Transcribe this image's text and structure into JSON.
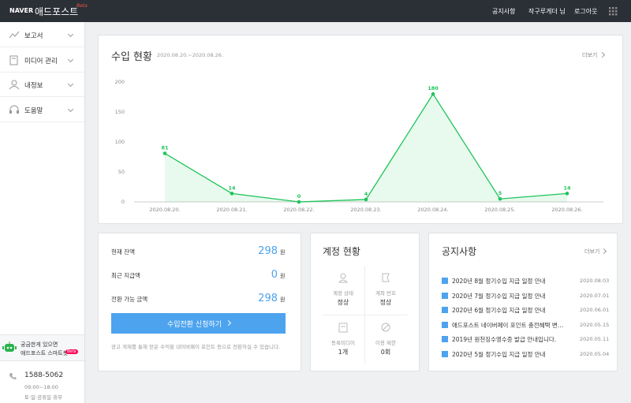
{
  "header": {
    "logo": "NAVER",
    "service": "애드포스트",
    "badge": "Beta",
    "links": [
      "공지사항",
      "작구루게더 님",
      "로그아웃"
    ]
  },
  "sidebar": {
    "menu": [
      "보고서",
      "미디어 관리",
      "내정보",
      "도움말"
    ],
    "bot": {
      "line1": "궁금한게 있으면",
      "line2": "애드포스트 스마트봇",
      "badge": "Beta"
    },
    "phone": "1588-5062",
    "hours": "09:00~18:00",
    "closed": "토·일·공휴일 휴무"
  },
  "revenue": {
    "title": "수입 현황",
    "period": "2020.08.20.~2020.08.26.",
    "more": "더보기",
    "chart": {
      "type": "line",
      "categories": [
        "2020.08.20.",
        "2020.08.21.",
        "2020.08.22.",
        "2020.08.23.",
        "2020.08.24.",
        "2020.08.25.",
        "2020.08.26."
      ],
      "values": [
        81,
        14,
        0,
        4,
        180,
        5,
        14
      ],
      "color": "#1fc45a",
      "ylim": [
        0,
        200
      ],
      "yticks": [
        0,
        50,
        100,
        150,
        200
      ],
      "grid": false
    }
  },
  "balance": {
    "rows": [
      {
        "label": "현재 잔액",
        "amount": 298,
        "unit": "원"
      },
      {
        "label": "최근 지급액",
        "amount": 0,
        "unit": "원"
      },
      {
        "label": "전환 가능 금액",
        "amount": 298,
        "unit": "원"
      }
    ],
    "button": "수입전환 신청하기",
    "note": "광고 게재를 통해 얻은 수익을 네이버페이 포인트 등으로 전환하실 수 있습니다."
  },
  "account": {
    "title": "계정 현황",
    "items": [
      {
        "label": "계정 상태",
        "value": "정상"
      },
      {
        "label": "계좌 번호",
        "value": "정상"
      },
      {
        "label": "등록미디어",
        "value": "1개"
      },
      {
        "label": "이용 제한",
        "value": "0회"
      }
    ]
  },
  "notices": {
    "title": "공지사항",
    "more": "더보기",
    "items": [
      {
        "text": "2020년 8월 정기수입 지급 일정 안내",
        "date": "2020.08.03"
      },
      {
        "text": "2020년 7월 정기수입 지급 일정 안내",
        "date": "2020.07.01"
      },
      {
        "text": "2020년 6월 정기수입 지급 일정 안내",
        "date": "2020.06.01"
      },
      {
        "text": "애드포스트 네이버페이 포인트 충전혜택 변…",
        "date": "2020.05.15"
      },
      {
        "text": "2019년 원천징수영수증 발급 안내입니다.",
        "date": "2020.05.11"
      },
      {
        "text": "2020년 5월 정기수입 지급 일정 안내",
        "date": "2020.05.04"
      }
    ]
  }
}
